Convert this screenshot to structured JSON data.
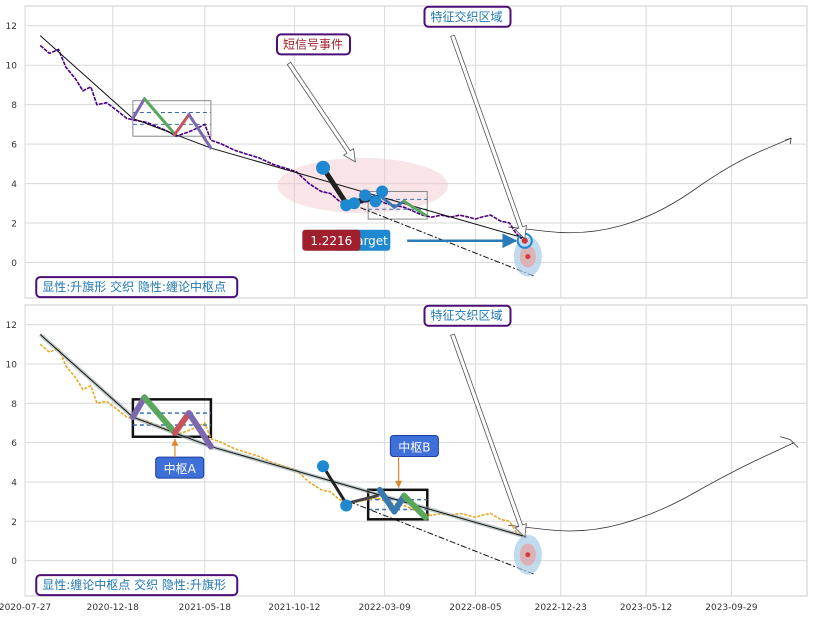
{
  "chart_data": [
    {
      "type": "line",
      "title": "",
      "xlabel": "",
      "ylabel": "",
      "ylim": [
        -1.8,
        13
      ],
      "xlim": [
        "2020-07-27",
        "2024-01-31"
      ],
      "grid": true,
      "y_ticks": [
        "12",
        "10",
        "8",
        "6",
        "4",
        "2",
        "0"
      ],
      "y_tick_values": [
        12,
        10,
        8,
        6,
        4,
        2,
        0
      ],
      "price_color": "#4b0082",
      "price_series": [
        [
          "2020-08-21",
          11.0
        ],
        [
          "2020-09-05",
          10.6
        ],
        [
          "2020-09-20",
          10.8
        ],
        [
          "2020-10-02",
          9.9
        ],
        [
          "2020-10-18",
          9.3
        ],
        [
          "2020-10-30",
          8.7
        ],
        [
          "2020-11-12",
          8.9
        ],
        [
          "2020-11-22",
          8.0
        ],
        [
          "2020-12-08",
          8.1
        ],
        [
          "2020-12-25",
          7.7
        ],
        [
          "2021-01-10",
          7.3
        ],
        [
          "2021-01-25",
          7.2
        ],
        [
          "2021-02-12",
          7.1
        ],
        [
          "2021-02-27",
          6.9
        ],
        [
          "2021-03-15",
          6.7
        ],
        [
          "2021-04-01",
          6.4
        ],
        [
          "2021-04-20",
          6.6
        ],
        [
          "2021-05-05",
          6.8
        ],
        [
          "2021-05-18",
          7.0
        ],
        [
          "2021-05-28",
          6.2
        ],
        [
          "2021-06-15",
          6.0
        ],
        [
          "2021-07-05",
          5.7
        ],
        [
          "2021-07-25",
          5.5
        ],
        [
          "2021-08-15",
          5.3
        ],
        [
          "2021-09-05",
          5.0
        ],
        [
          "2021-09-25",
          4.8
        ],
        [
          "2021-10-15",
          4.6
        ],
        [
          "2021-11-05",
          4.0
        ],
        [
          "2021-11-25",
          3.6
        ],
        [
          "2021-12-10",
          3.5
        ],
        [
          "2021-12-25",
          3.1
        ],
        [
          "2022-01-10",
          2.9
        ],
        [
          "2022-01-25",
          3.0
        ],
        [
          "2022-02-10",
          3.1
        ],
        [
          "2022-02-25",
          3.2
        ],
        [
          "2022-03-10",
          3.0
        ],
        [
          "2022-03-25",
          2.9
        ],
        [
          "2022-04-10",
          2.8
        ],
        [
          "2022-04-25",
          2.6
        ],
        [
          "2022-05-10",
          2.4
        ],
        [
          "2022-05-25",
          2.3
        ],
        [
          "2022-06-10",
          2.4
        ],
        [
          "2022-06-25",
          2.3
        ],
        [
          "2022-07-10",
          2.4
        ],
        [
          "2022-07-25",
          2.3
        ],
        [
          "2022-08-05",
          2.2
        ],
        [
          "2022-08-15",
          2.3
        ],
        [
          "2022-08-30",
          2.4
        ],
        [
          "2022-09-15",
          2.1
        ],
        [
          "2022-09-30",
          2.0
        ],
        [
          "2022-10-10",
          1.5
        ],
        [
          "2022-10-20",
          1.2
        ]
      ],
      "channel_line": [
        [
          "2020-08-21",
          11.5
        ],
        [
          "2021-01-20",
          7.3
        ],
        [
          "2021-05-28",
          5.8
        ],
        [
          "2022-10-28",
          1.2
        ]
      ],
      "extension_line": [
        [
          "2022-01-10",
          3.0
        ],
        [
          "2022-11-10",
          -0.7
        ]
      ],
      "zigzag": [
        {
          "points": [
            [
              "2021-01-20",
              7.3
            ],
            [
              "2021-02-08",
              8.3
            ]
          ],
          "color": "#7b68ae"
        },
        {
          "points": [
            [
              "2021-02-08",
              8.3
            ],
            [
              "2021-03-30",
              6.5
            ]
          ],
          "color": "#5aa65a"
        },
        {
          "points": [
            [
              "2021-03-30",
              6.5
            ],
            [
              "2021-04-22",
              7.5
            ]
          ],
          "color": "#c8535c"
        },
        {
          "points": [
            [
              "2021-04-22",
              7.5
            ],
            [
              "2021-05-28",
              5.8
            ]
          ],
          "color": "#7b68ae"
        },
        {
          "points": [
            [
              "2021-11-28",
              4.8
            ],
            [
              "2022-01-05",
              3.0
            ]
          ],
          "color": "#222222"
        },
        {
          "points": [
            [
              "2022-01-05",
              3.0
            ],
            [
              "2022-02-25",
              3.3
            ]
          ],
          "color": "#222222"
        },
        {
          "points": [
            [
              "2022-03-01",
              3.4
            ],
            [
              "2022-03-25",
              2.8
            ]
          ],
          "color": "#3a78b0"
        },
        {
          "points": [
            [
              "2022-03-25",
              2.8
            ],
            [
              "2022-04-10",
              3.1
            ]
          ],
          "color": "#3a78b0"
        },
        {
          "points": [
            [
              "2022-04-10",
              3.1
            ],
            [
              "2022-05-15",
              2.4
            ]
          ],
          "color": "#5aa65a"
        }
      ],
      "pivot_boxes": [
        {
          "x0": "2021-01-20",
          "x1": "2021-05-28",
          "y0": 6.4,
          "y1": 8.2
        },
        {
          "x0": "2022-02-10",
          "x1": "2022-05-18",
          "y0": 2.2,
          "y1": 3.6
        }
      ],
      "pivot_mid_lines": [
        {
          "x0": "2021-01-20",
          "x1": "2021-05-28",
          "y": 7.6
        },
        {
          "x0": "2021-01-20",
          "x1": "2021-05-28",
          "y": 7.0
        },
        {
          "x0": "2022-02-10",
          "x1": "2022-05-18",
          "y": 3.2
        },
        {
          "x0": "2022-02-10",
          "x1": "2022-05-18",
          "y": 2.7
        }
      ],
      "markers": [
        [
          "2021-11-28",
          4.8
        ],
        [
          "2022-01-05",
          2.9
        ],
        [
          "2022-01-18",
          3.0
        ],
        [
          "2022-02-05",
          3.4
        ],
        [
          "2022-02-22",
          3.1
        ],
        [
          "2022-03-05",
          3.6
        ]
      ],
      "future_curve": [
        [
          "2022-09-28",
          1.8
        ],
        [
          "2023-02-01",
          1.35
        ],
        [
          "2023-06-01",
          2.4
        ],
        [
          "2023-09-28",
          5.0
        ],
        [
          "2024-01-05",
          6.3
        ]
      ],
      "highlight_ellipse": {
        "cx": "2022-02-01",
        "cy": 3.9,
        "rx_days": 140,
        "ry": 1.4
      },
      "target_circle": {
        "x": "2022-10-25",
        "y": 1.1
      },
      "projection_circle": {
        "x": "2022-10-30",
        "y": 0.3
      },
      "annotations": [
        {
          "text": "短信号事件",
          "x": "2021-09-20",
          "y": 10.8,
          "arrow_to": [
            "2022-01-20",
            5.1
          ]
        },
        {
          "text": "特征交织区域",
          "x": "2022-05-20",
          "y": 12.2,
          "arrow_to": [
            "2022-10-25",
            1.2
          ]
        },
        {
          "text": "显性:升旗形 交织 隐性:缠论中枢点",
          "x": "2020-08-21",
          "y": -1.5
        }
      ],
      "target_label": {
        "value": "1.2216",
        "text": "Target"
      }
    },
    {
      "type": "line",
      "title": "",
      "xlabel": "",
      "ylabel": "",
      "ylim": [
        -1.8,
        13
      ],
      "xlim": [
        "2020-07-27",
        "2024-01-31"
      ],
      "grid": true,
      "y_ticks": [
        "12",
        "10",
        "8",
        "6",
        "4",
        "2",
        "0"
      ],
      "y_tick_values": [
        12,
        10,
        8,
        6,
        4,
        2,
        0
      ],
      "price_color": "#e8a923",
      "x_tick_labels": [
        "2020-07-27",
        "2020-12-18",
        "2021-05-18",
        "2021-10-12",
        "2022-03-09",
        "2022-08-05",
        "2022-12-23",
        "2023-05-12",
        "2023-09-29"
      ],
      "price_series": [
        [
          "2020-08-21",
          11.0
        ],
        [
          "2020-09-05",
          10.6
        ],
        [
          "2020-09-20",
          10.8
        ],
        [
          "2020-10-02",
          9.9
        ],
        [
          "2020-10-18",
          9.3
        ],
        [
          "2020-10-30",
          8.7
        ],
        [
          "2020-11-12",
          8.9
        ],
        [
          "2020-11-22",
          8.0
        ],
        [
          "2020-12-08",
          8.1
        ],
        [
          "2020-12-25",
          7.7
        ],
        [
          "2021-01-10",
          7.3
        ],
        [
          "2021-01-25",
          7.2
        ],
        [
          "2021-02-12",
          7.1
        ],
        [
          "2021-02-27",
          6.9
        ],
        [
          "2021-03-15",
          6.7
        ],
        [
          "2021-04-01",
          6.4
        ],
        [
          "2021-04-20",
          6.6
        ],
        [
          "2021-05-05",
          6.8
        ],
        [
          "2021-05-18",
          7.0
        ],
        [
          "2021-05-28",
          6.2
        ],
        [
          "2021-06-15",
          6.0
        ],
        [
          "2021-07-05",
          5.7
        ],
        [
          "2021-07-25",
          5.5
        ],
        [
          "2021-08-15",
          5.3
        ],
        [
          "2021-09-05",
          5.0
        ],
        [
          "2021-09-25",
          4.8
        ],
        [
          "2021-10-15",
          4.6
        ],
        [
          "2021-11-05",
          4.0
        ],
        [
          "2021-11-25",
          3.6
        ],
        [
          "2021-12-10",
          3.5
        ],
        [
          "2021-12-25",
          3.1
        ],
        [
          "2022-01-10",
          2.9
        ],
        [
          "2022-01-25",
          3.0
        ],
        [
          "2022-02-10",
          3.1
        ],
        [
          "2022-02-25",
          3.2
        ],
        [
          "2022-03-10",
          3.0
        ],
        [
          "2022-03-25",
          2.9
        ],
        [
          "2022-04-10",
          2.8
        ],
        [
          "2022-04-25",
          2.6
        ],
        [
          "2022-05-10",
          2.4
        ],
        [
          "2022-05-25",
          2.3
        ],
        [
          "2022-06-10",
          2.4
        ],
        [
          "2022-06-25",
          2.3
        ],
        [
          "2022-07-10",
          2.4
        ],
        [
          "2022-07-25",
          2.3
        ],
        [
          "2022-08-05",
          2.2
        ],
        [
          "2022-08-15",
          2.3
        ],
        [
          "2022-08-30",
          2.4
        ],
        [
          "2022-09-15",
          2.1
        ],
        [
          "2022-09-30",
          2.0
        ],
        [
          "2022-10-10",
          1.5
        ],
        [
          "2022-10-20",
          1.2
        ]
      ],
      "channel_line": [
        [
          "2020-08-21",
          11.5
        ],
        [
          "2021-01-20",
          7.3
        ],
        [
          "2021-05-28",
          5.8
        ],
        [
          "2022-10-28",
          1.2
        ]
      ],
      "extension_line": [
        [
          "2022-01-10",
          3.0
        ],
        [
          "2022-11-10",
          -0.7
        ]
      ],
      "zigzag": [
        {
          "points": [
            [
              "2021-01-20",
              7.3
            ],
            [
              "2021-02-08",
              8.3
            ]
          ],
          "color": "#7b68ae"
        },
        {
          "points": [
            [
              "2021-02-08",
              8.3
            ],
            [
              "2021-03-30",
              6.5
            ]
          ],
          "color": "#5aa65a"
        },
        {
          "points": [
            [
              "2021-03-30",
              6.5
            ],
            [
              "2021-04-22",
              7.5
            ]
          ],
          "color": "#c8535c"
        },
        {
          "points": [
            [
              "2021-04-22",
              7.5
            ],
            [
              "2021-05-28",
              5.8
            ]
          ],
          "color": "#7b68ae"
        },
        {
          "points": [
            [
              "2021-11-28",
              4.8
            ],
            [
              "2022-01-05",
              2.9
            ]
          ],
          "color": "#222222"
        },
        {
          "points": [
            [
              "2022-01-05",
              2.9
            ],
            [
              "2022-02-25",
              3.3
            ]
          ],
          "color": "#444444"
        },
        {
          "points": [
            [
              "2022-03-01",
              3.6
            ],
            [
              "2022-03-25",
              2.5
            ]
          ],
          "color": "#3a78b0"
        },
        {
          "points": [
            [
              "2022-03-25",
              2.5
            ],
            [
              "2022-04-10",
              3.3
            ]
          ],
          "color": "#3a78b0"
        },
        {
          "points": [
            [
              "2022-04-10",
              3.3
            ],
            [
              "2022-05-15",
              2.2
            ]
          ],
          "color": "#5aa65a"
        }
      ],
      "pivot_boxes": [
        {
          "x0": "2021-01-20",
          "x1": "2021-05-28",
          "y0": 6.3,
          "y1": 8.2
        },
        {
          "x0": "2022-02-10",
          "x1": "2022-05-18",
          "y0": 2.1,
          "y1": 3.6
        }
      ],
      "pivot_mid_lines": [
        {
          "x0": "2021-01-20",
          "x1": "2021-05-28",
          "y": 7.5
        },
        {
          "x0": "2021-01-20",
          "x1": "2021-05-28",
          "y": 6.9
        },
        {
          "x0": "2022-02-10",
          "x1": "2022-05-18",
          "y": 3.1
        },
        {
          "x0": "2022-02-10",
          "x1": "2022-05-18",
          "y": 2.6
        }
      ],
      "markers": [
        [
          "2021-11-28",
          4.8
        ],
        [
          "2022-01-05",
          2.8
        ]
      ],
      "future_curve": [
        [
          "2022-09-28",
          1.8
        ],
        [
          "2023-02-01",
          1.35
        ],
        [
          "2023-06-01",
          2.4
        ],
        [
          "2023-09-28",
          4.5
        ],
        [
          "2024-01-10",
          6.0
        ]
      ],
      "projection_circle": {
        "x": "2022-10-30",
        "y": 0.3
      },
      "annotations": [
        {
          "text": "特征交织区域",
          "x": "2022-05-20",
          "y": 12.2,
          "arrow_to": [
            "2022-10-25",
            1.2
          ]
        },
        {
          "text": "中枢A",
          "x": "2021-03-05",
          "y": 4.5,
          "arrow_to": [
            "2021-03-30",
            6.2
          ]
        },
        {
          "text": "中枢B",
          "x": "2022-03-25",
          "y": 5.6,
          "arrow_to": [
            "2022-04-01",
            3.7
          ]
        },
        {
          "text": "显性:缠论中枢点 交织 隐性:升旗形",
          "x": "2020-08-21",
          "y": -1.5
        }
      ]
    }
  ]
}
